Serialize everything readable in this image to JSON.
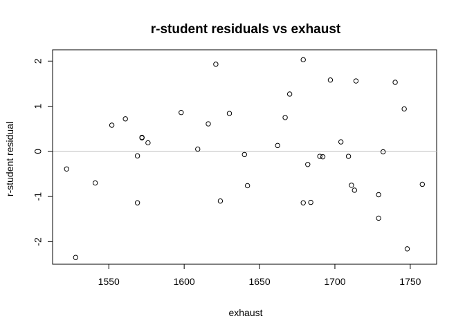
{
  "chart_data": {
    "type": "scatter",
    "title": "r-student residuals vs exhaust",
    "xlabel": "exhaust",
    "ylabel": "r-student residual",
    "xlim": [
      1512.7,
      1767.5
    ],
    "ylim": [
      -2.5,
      2.25
    ],
    "xticks": [
      1550,
      1600,
      1650,
      1700,
      1750
    ],
    "xtick_labels": [
      "1550",
      "1600",
      "1650",
      "1700",
      "1750"
    ],
    "yticks": [
      -2,
      -1,
      0,
      1,
      2
    ],
    "ytick_labels": [
      "-2",
      "-1",
      "0",
      "1",
      "2"
    ],
    "reference_line": {
      "y": 0,
      "color": "#bebebe"
    },
    "grid": false,
    "legend": "none",
    "marker": "open-circle",
    "point_color": "#000000",
    "points": [
      {
        "x": 1522,
        "y": -0.39
      },
      {
        "x": 1528,
        "y": -2.35
      },
      {
        "x": 1541,
        "y": -0.7
      },
      {
        "x": 1552,
        "y": 0.58
      },
      {
        "x": 1561,
        "y": 0.72
      },
      {
        "x": 1569,
        "y": -0.1
      },
      {
        "x": 1569,
        "y": -1.14
      },
      {
        "x": 1572,
        "y": 0.31
      },
      {
        "x": 1572,
        "y": 0.3
      },
      {
        "x": 1576,
        "y": 0.19
      },
      {
        "x": 1598,
        "y": 0.86
      },
      {
        "x": 1609,
        "y": 0.05
      },
      {
        "x": 1616,
        "y": 0.61
      },
      {
        "x": 1621,
        "y": 1.93
      },
      {
        "x": 1624,
        "y": -1.1
      },
      {
        "x": 1630,
        "y": 0.84
      },
      {
        "x": 1640,
        "y": -0.07
      },
      {
        "x": 1642,
        "y": -0.76
      },
      {
        "x": 1662,
        "y": 0.13
      },
      {
        "x": 1667,
        "y": 0.75
      },
      {
        "x": 1670,
        "y": 1.27
      },
      {
        "x": 1679,
        "y": 2.03
      },
      {
        "x": 1679,
        "y": -1.14
      },
      {
        "x": 1682,
        "y": -0.29
      },
      {
        "x": 1684,
        "y": -1.13
      },
      {
        "x": 1690,
        "y": -0.11
      },
      {
        "x": 1692,
        "y": -0.12
      },
      {
        "x": 1697,
        "y": 1.58
      },
      {
        "x": 1704,
        "y": 0.21
      },
      {
        "x": 1709,
        "y": -0.11
      },
      {
        "x": 1711,
        "y": -0.75
      },
      {
        "x": 1713,
        "y": -0.86
      },
      {
        "x": 1714,
        "y": 1.56
      },
      {
        "x": 1729,
        "y": -0.96
      },
      {
        "x": 1729,
        "y": -1.48
      },
      {
        "x": 1732,
        "y": -0.01
      },
      {
        "x": 1740,
        "y": 1.53
      },
      {
        "x": 1746,
        "y": 0.94
      },
      {
        "x": 1748,
        "y": -2.16
      },
      {
        "x": 1758,
        "y": -0.73
      }
    ]
  }
}
